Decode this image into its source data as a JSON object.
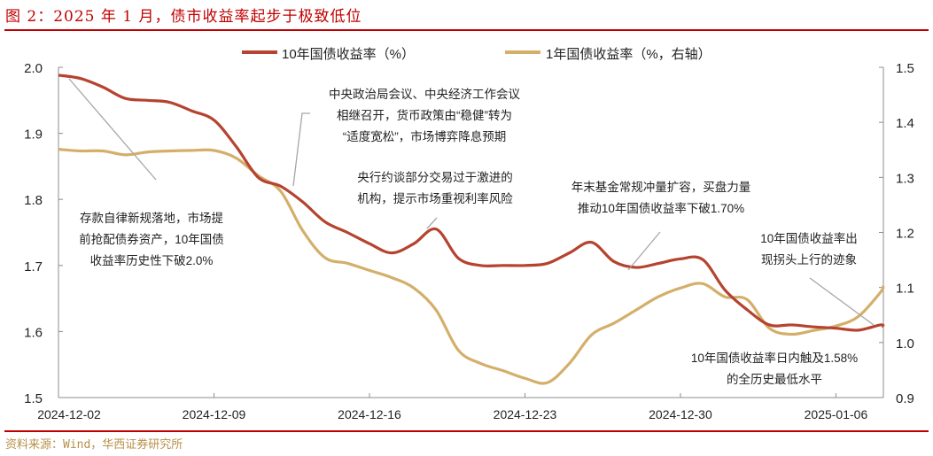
{
  "title": "图 2：2025 年 1 月，债市收益率起步于极致低位",
  "source": "资料来源：Wind，华西证券研究所",
  "colors": {
    "title": "#C00000",
    "series_10y": "#B5432F",
    "series_1y": "#D4AF6A",
    "axis": "#8C8C8C",
    "leader": "#A6A6A6"
  },
  "chart_data": {
    "type": "line",
    "title": "",
    "xlabel": "",
    "ylabel": "",
    "y2label": "",
    "x_ticks": [
      "2024-12-02",
      "2024-12-09",
      "2024-12-16",
      "2024-12-23",
      "2024-12-30",
      "2025-01-06"
    ],
    "ylim": [
      1.5,
      2.0
    ],
    "y_ticks": [
      "1.5",
      "1.6",
      "1.7",
      "1.8",
      "1.9",
      "2.0"
    ],
    "y2lim": [
      0.9,
      1.5
    ],
    "y2_ticks": [
      "0.9",
      "1.0",
      "1.1",
      "1.2",
      "1.3",
      "1.4",
      "1.5"
    ],
    "grid": false,
    "legend_position": "top",
    "x": [
      "2024-12-02",
      "2024-12-03",
      "2024-12-04",
      "2024-12-05",
      "2024-12-06",
      "2024-12-07",
      "2024-12-08",
      "2024-12-09",
      "2024-12-10",
      "2024-12-11",
      "2024-12-12",
      "2024-12-13",
      "2024-12-14",
      "2024-12-15",
      "2024-12-16",
      "2024-12-17",
      "2024-12-18",
      "2024-12-19",
      "2024-12-20",
      "2024-12-21",
      "2024-12-22",
      "2024-12-23",
      "2024-12-24",
      "2024-12-25",
      "2024-12-26",
      "2024-12-27",
      "2024-12-28",
      "2024-12-29",
      "2024-12-30",
      "2024-12-31",
      "2025-01-01",
      "2025-01-02",
      "2025-01-03",
      "2025-01-04",
      "2025-01-05",
      "2025-01-06",
      "2025-01-07",
      "2025-01-08"
    ],
    "series": [
      {
        "name": "10年国债收益率（%）",
        "axis": "left",
        "values": [
          1.988,
          1.983,
          1.97,
          1.953,
          1.95,
          1.947,
          1.934,
          1.92,
          1.88,
          1.833,
          1.82,
          1.796,
          1.766,
          1.75,
          1.733,
          1.719,
          1.733,
          1.755,
          1.711,
          1.7,
          1.7,
          1.7,
          1.703,
          1.719,
          1.735,
          1.706,
          1.697,
          1.703,
          1.71,
          1.709,
          1.663,
          1.633,
          1.61,
          1.61,
          1.607,
          1.605,
          1.602,
          1.61
        ]
      },
      {
        "name": "1年国债收益率（%，右轴）",
        "axis": "right",
        "values": [
          1.351,
          1.348,
          1.348,
          1.341,
          1.346,
          1.348,
          1.349,
          1.349,
          1.335,
          1.303,
          1.275,
          1.203,
          1.154,
          1.144,
          1.131,
          1.118,
          1.099,
          1.059,
          0.986,
          0.962,
          0.949,
          0.935,
          0.927,
          0.962,
          1.014,
          1.035,
          1.059,
          1.083,
          1.099,
          1.107,
          1.083,
          1.078,
          1.026,
          1.015,
          1.022,
          1.03,
          1.047,
          1.091
        ]
      }
    ],
    "annotations": [
      {
        "lines": [
          "存款自律新规落地，市场提",
          "前抢配债券资产，10年国债",
          "收益率历史性下破2.0%"
        ]
      },
      {
        "lines": [
          "中央政治局会议、中央经济工作会议",
          "相继召开，货币政策由“稳健”转为",
          "“适度宽松”，市场博弈降息预期"
        ]
      },
      {
        "lines": [
          "央行约谈部分交易过于激进的",
          "机构，提示市场重视利率风险"
        ]
      },
      {
        "lines": [
          "年末基金常规冲量扩容，买盘力量",
          "推动10年国债收益率下破1.70%"
        ]
      },
      {
        "lines": [
          "10年国债收益率出",
          "现拐头上行的迹象"
        ]
      },
      {
        "lines": [
          "10年国债收益率日内触及1.58%",
          "的全历史最低水平"
        ]
      }
    ]
  }
}
